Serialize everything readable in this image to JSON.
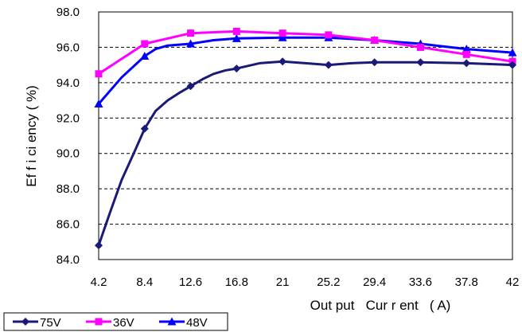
{
  "chart_data": {
    "type": "line",
    "title": "",
    "xlabel": "Out put   Cur r ent   ( A)",
    "ylabel": "Ef f i ci ency  ( %)",
    "x_ticks": [
      "4.2",
      "8.4",
      "12.6",
      "16.8",
      "21",
      "25.2",
      "29.4",
      "33.6",
      "37.8",
      "42"
    ],
    "y_ticks": [
      "98.0",
      "96.0",
      "94.0",
      "92.0",
      "90.0",
      "88.0",
      "86.0",
      "84.0"
    ],
    "xlim": [
      4.2,
      42
    ],
    "ylim": [
      84.0,
      98.0
    ],
    "grid": "horizontal dashed",
    "legend_position": "bottom-left",
    "series": [
      {
        "name": "75V",
        "color": "#1a1a78",
        "marker": "diamond",
        "points": [
          [
            4.2,
            84.8
          ],
          [
            5.2,
            86.6
          ],
          [
            6.3,
            88.5
          ],
          [
            7.4,
            90.0
          ],
          [
            8.4,
            91.4
          ],
          [
            9.4,
            92.4
          ],
          [
            10.5,
            93.0
          ],
          [
            11.5,
            93.4
          ],
          [
            12.6,
            93.8
          ],
          [
            13.7,
            94.2
          ],
          [
            14.7,
            94.5
          ],
          [
            15.8,
            94.7
          ],
          [
            16.8,
            94.8
          ],
          [
            18.9,
            95.1
          ],
          [
            21.0,
            95.2
          ],
          [
            23.1,
            95.1
          ],
          [
            25.2,
            95.0
          ],
          [
            27.3,
            95.1
          ],
          [
            29.4,
            95.15
          ],
          [
            33.6,
            95.15
          ],
          [
            37.8,
            95.1
          ],
          [
            42.0,
            95.0
          ]
        ]
      },
      {
        "name": "36V",
        "color": "#ff00ff",
        "marker": "square",
        "points": [
          [
            4.2,
            94.5
          ],
          [
            8.4,
            96.2
          ],
          [
            12.6,
            96.8
          ],
          [
            16.8,
            96.9
          ],
          [
            21.0,
            96.8
          ],
          [
            25.2,
            96.7
          ],
          [
            29.4,
            96.4
          ],
          [
            33.6,
            96.0
          ],
          [
            37.8,
            95.6
          ],
          [
            42.0,
            95.2
          ]
        ]
      },
      {
        "name": "48V",
        "color": "#0000ff",
        "marker": "triangle",
        "points": [
          [
            4.2,
            92.8
          ],
          [
            6.3,
            94.3
          ],
          [
            8.4,
            95.5
          ],
          [
            9.4,
            95.9
          ],
          [
            10.5,
            96.1
          ],
          [
            12.6,
            96.2
          ],
          [
            14.7,
            96.4
          ],
          [
            16.8,
            96.5
          ],
          [
            21.0,
            96.55
          ],
          [
            25.2,
            96.55
          ],
          [
            29.4,
            96.4
          ],
          [
            33.6,
            96.2
          ],
          [
            37.8,
            95.9
          ],
          [
            42.0,
            95.7
          ]
        ]
      }
    ]
  }
}
